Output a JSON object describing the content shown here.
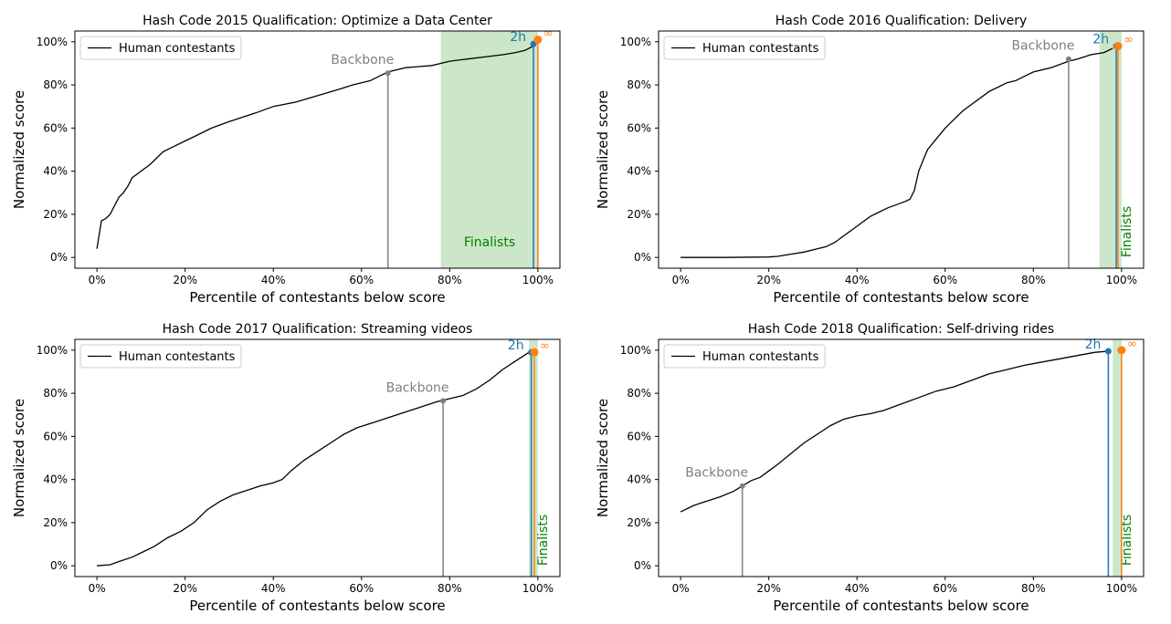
{
  "colors": {
    "human": "#000000",
    "backbone": "#808080",
    "two_h": "#1f77b4",
    "infinity": "#ff7f0e",
    "finalists_fill": "#a9d5a4",
    "finalists_text": "#008000",
    "axis": "#000000"
  },
  "chart_data": [
    {
      "type": "line",
      "title": "Hash Code 2015 Qualification: Optimize a Data Center",
      "xlabel": "Percentile of contestants below score",
      "ylabel": "Normalized score",
      "xlim": [
        -5,
        105
      ],
      "ylim": [
        -5,
        105
      ],
      "xticks": [
        "0%",
        "20%",
        "40%",
        "60%",
        "80%",
        "100%"
      ],
      "yticks": [
        "0%",
        "20%",
        "40%",
        "60%",
        "80%",
        "100%"
      ],
      "legend": {
        "position": "top-left",
        "entries": [
          "Human contestants"
        ]
      },
      "series": [
        {
          "name": "Human contestants",
          "x": [
            0,
            1,
            2,
            3,
            4,
            5,
            6,
            7,
            8,
            10,
            12,
            14,
            15,
            17,
            20,
            23,
            26,
            30,
            33,
            36,
            40,
            45,
            50,
            55,
            58,
            60,
            62,
            64,
            66,
            68,
            70,
            73,
            76,
            80,
            84,
            88,
            92,
            95,
            97,
            98,
            99
          ],
          "y": [
            4,
            17,
            18,
            20,
            24,
            28,
            30,
            33,
            37,
            40,
            43,
            47,
            49,
            51,
            54,
            57,
            60,
            63,
            65,
            67,
            70,
            72,
            75,
            78,
            80,
            81,
            82,
            84,
            86,
            87,
            88,
            88.5,
            89,
            91,
            92,
            93,
            94,
            95,
            96,
            97,
            98
          ]
        }
      ],
      "finalists": {
        "label": "Finalists",
        "x_range": [
          78,
          100
        ]
      },
      "markers": [
        {
          "label": "Backbone",
          "x": 66,
          "y": 85.5
        },
        {
          "label": "2h",
          "x": 99,
          "y": 99
        },
        {
          "label": "∞",
          "x": 100,
          "y": 101
        }
      ]
    },
    {
      "type": "line",
      "title": "Hash Code 2016 Qualification: Delivery",
      "xlabel": "Percentile of contestants below score",
      "ylabel": "Normalized score",
      "xlim": [
        -5,
        105
      ],
      "ylim": [
        -5,
        105
      ],
      "xticks": [
        "0%",
        "20%",
        "40%",
        "60%",
        "80%",
        "100%"
      ],
      "yticks": [
        "0%",
        "20%",
        "40%",
        "60%",
        "80%",
        "100%"
      ],
      "legend": {
        "position": "top-left",
        "entries": [
          "Human contestants"
        ]
      },
      "series": [
        {
          "name": "Human contestants",
          "x": [
            0,
            10,
            20,
            22,
            25,
            28,
            30,
            33,
            35,
            37,
            39,
            41,
            43,
            45,
            47,
            49,
            51,
            52,
            53,
            54,
            55,
            56,
            58,
            60,
            62,
            64,
            66,
            68,
            70,
            72,
            74,
            76,
            78,
            80,
            84,
            88,
            90,
            93,
            96,
            98
          ],
          "y": [
            0,
            0,
            0.2,
            0.5,
            1.5,
            2.5,
            3.5,
            5,
            7,
            10,
            13,
            16,
            19,
            21,
            23,
            24.5,
            26,
            27,
            31,
            40,
            45,
            50,
            55,
            60,
            64,
            68,
            71,
            74,
            77,
            79,
            81,
            82,
            84,
            86,
            88,
            91,
            92,
            94,
            95,
            97
          ]
        }
      ],
      "finalists": {
        "label": "Finalists",
        "x_range": [
          95,
          100
        ]
      },
      "markers": [
        {
          "label": "Backbone",
          "x": 88,
          "y": 92
        },
        {
          "label": "2h",
          "x": 98.8,
          "y": 98
        },
        {
          "label": "∞",
          "x": 99.2,
          "y": 98
        }
      ]
    },
    {
      "type": "line",
      "title": "Hash Code 2017 Qualification: Streaming videos",
      "xlabel": "Percentile of contestants below score",
      "ylabel": "Normalized score",
      "xlim": [
        -5,
        105
      ],
      "ylim": [
        -5,
        105
      ],
      "xticks": [
        "0%",
        "20%",
        "40%",
        "60%",
        "80%",
        "100%"
      ],
      "yticks": [
        "0%",
        "20%",
        "40%",
        "60%",
        "80%",
        "100%"
      ],
      "legend": {
        "position": "top-left",
        "entries": [
          "Human contestants"
        ]
      },
      "series": [
        {
          "name": "Human contestants",
          "x": [
            0,
            3,
            5,
            8,
            10,
            13,
            16,
            19,
            22,
            25,
            28,
            31,
            34,
            37,
            40,
            42,
            44,
            47,
            50,
            53,
            56,
            59,
            62,
            65,
            68,
            71,
            74,
            77,
            80,
            83,
            86,
            89,
            92,
            95,
            98
          ],
          "y": [
            0,
            0.5,
            2,
            4,
            6,
            9,
            13,
            16,
            20,
            26,
            30,
            33,
            35,
            37,
            38.5,
            40,
            44,
            49,
            53,
            57,
            61,
            64,
            66,
            68,
            70,
            72,
            74,
            76,
            77.5,
            79,
            82,
            86,
            91,
            95,
            99
          ]
        }
      ],
      "finalists": {
        "label": "Finalists",
        "x_range": [
          98,
          100
        ]
      },
      "markers": [
        {
          "label": "Backbone",
          "x": 78.5,
          "y": 76.5
        },
        {
          "label": "2h",
          "x": 98.5,
          "y": 99
        },
        {
          "label": "∞",
          "x": 99.2,
          "y": 99
        }
      ]
    },
    {
      "type": "line",
      "title": "Hash Code 2018 Qualification: Self-driving rides",
      "xlabel": "Percentile of contestants below score",
      "ylabel": "Normalized score",
      "xlim": [
        -5,
        105
      ],
      "ylim": [
        -5,
        105
      ],
      "xticks": [
        "0%",
        "20%",
        "40%",
        "60%",
        "80%",
        "100%"
      ],
      "yticks": [
        "0%",
        "20%",
        "40%",
        "60%",
        "80%",
        "100%"
      ],
      "legend": {
        "position": "top-left",
        "entries": [
          "Human contestants"
        ]
      },
      "series": [
        {
          "name": "Human contestants",
          "x": [
            0,
            3,
            6,
            9,
            12,
            14,
            16,
            18,
            20,
            22,
            25,
            28,
            31,
            34,
            37,
            40,
            43,
            46,
            50,
            54,
            58,
            62,
            66,
            70,
            74,
            78,
            82,
            86,
            90,
            94,
            97
          ],
          "y": [
            25,
            28,
            30,
            32,
            34.5,
            37,
            39.5,
            41,
            44,
            47,
            52,
            57,
            61,
            65,
            68,
            69.5,
            70.5,
            72,
            75,
            78,
            81,
            83,
            86,
            89,
            91,
            93,
            94.5,
            96,
            97.5,
            99,
            99.5
          ]
        }
      ],
      "finalists": {
        "label": "Finalists",
        "x_range": [
          98,
          100
        ]
      },
      "markers": [
        {
          "label": "Backbone",
          "x": 14,
          "y": 37
        },
        {
          "label": "2h",
          "x": 97,
          "y": 99.5
        },
        {
          "label": "∞",
          "x": 100,
          "y": 100
        }
      ]
    }
  ]
}
